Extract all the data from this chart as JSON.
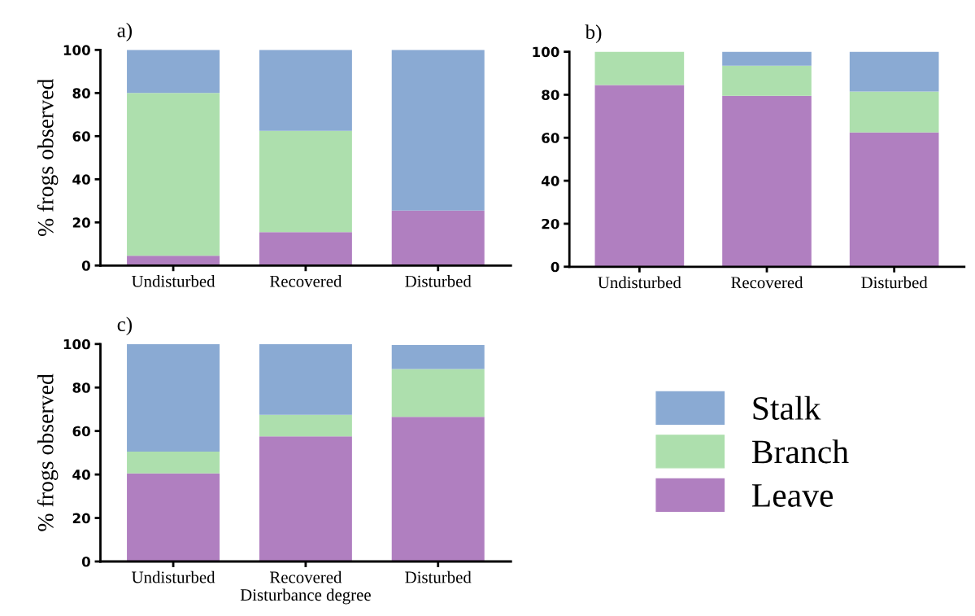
{
  "chart_data": [
    {
      "type": "bar",
      "title": "a)",
      "ylabel": "% frogs observed",
      "categories": [
        "Undisturbed",
        "Recovered",
        "Disturbed"
      ],
      "stacked": true,
      "ylim": [
        0,
        100
      ],
      "yticks": [
        0,
        20,
        40,
        60,
        80,
        100
      ],
      "grid": false,
      "legend": false,
      "series": [
        {
          "color": "#b07fc0",
          "values": [
            4.5,
            15.5,
            25.5
          ]
        },
        {
          "color": "#addfad",
          "values": [
            75.5,
            47,
            0
          ]
        },
        {
          "color": "#8aaad3",
          "values": [
            20,
            37.5,
            74.5
          ]
        }
      ]
    },
    {
      "type": "bar",
      "title": "b)",
      "categories": [
        "Undisturbed",
        "Recovered",
        "Disturbed"
      ],
      "stacked": true,
      "ylim": [
        0,
        100
      ],
      "yticks": [
        0,
        20,
        40,
        60,
        80,
        100
      ],
      "grid": false,
      "legend": false,
      "series": [
        {
          "color": "#b07fc0",
          "values": [
            84.5,
            79.5,
            62.5
          ]
        },
        {
          "color": "#addfad",
          "values": [
            15.5,
            14,
            19
          ]
        },
        {
          "color": "#8aaad3",
          "values": [
            0,
            6.5,
            18.5
          ]
        }
      ]
    },
    {
      "type": "bar",
      "title": "c)",
      "ylabel": "% frogs observed",
      "xlabel": "Disturbance degree",
      "categories": [
        "Undisturbed",
        "Recovered",
        "Disturbed"
      ],
      "stacked": true,
      "ylim": [
        0,
        100
      ],
      "yticks": [
        0,
        20,
        40,
        60,
        80,
        100
      ],
      "grid": false,
      "legend": "right",
      "series": [
        {
          "name": "Leave",
          "color": "#b07fc0",
          "values": [
            40.5,
            57.5,
            66.5
          ]
        },
        {
          "name": "Branch",
          "color": "#addfad",
          "values": [
            10,
            10,
            22
          ]
        },
        {
          "name": "Stalk",
          "color": "#8aaad3",
          "values": [
            49.5,
            32.5,
            11
          ]
        }
      ]
    }
  ]
}
